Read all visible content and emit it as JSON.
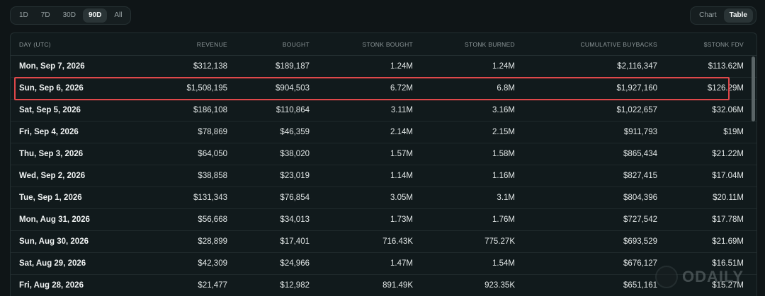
{
  "range_tabs": [
    {
      "label": "1D"
    },
    {
      "label": "7D"
    },
    {
      "label": "30D"
    },
    {
      "label": "90D"
    },
    {
      "label": "All"
    }
  ],
  "active_range": "90D",
  "view_tabs": [
    {
      "label": "Chart"
    },
    {
      "label": "Table"
    }
  ],
  "active_view": "Table",
  "table": {
    "headers": [
      "DAY (UTC)",
      "REVENUE",
      "BOUGHT",
      "STONK BOUGHT",
      "STONK BURNED",
      "CUMULATIVE BUYBACKS",
      "$STONK FDV"
    ],
    "rows": [
      [
        "Mon, Sep 7, 2026",
        "$312,138",
        "$189,187",
        "1.24M",
        "1.24M",
        "$2,116,347",
        "$113.62M"
      ],
      [
        "Sun, Sep 6, 2026",
        "$1,508,195",
        "$904,503",
        "6.72M",
        "6.8M",
        "$1,927,160",
        "$126.29M"
      ],
      [
        "Sat, Sep 5, 2026",
        "$186,108",
        "$110,864",
        "3.11M",
        "3.16M",
        "$1,022,657",
        "$32.06M"
      ],
      [
        "Fri, Sep 4, 2026",
        "$78,869",
        "$46,359",
        "2.14M",
        "2.15M",
        "$911,793",
        "$19M"
      ],
      [
        "Thu, Sep 3, 2026",
        "$64,050",
        "$38,020",
        "1.57M",
        "1.58M",
        "$865,434",
        "$21.22M"
      ],
      [
        "Wed, Sep 2, 2026",
        "$38,858",
        "$23,019",
        "1.14M",
        "1.16M",
        "$827,415",
        "$17.04M"
      ],
      [
        "Tue, Sep 1, 2026",
        "$131,343",
        "$76,854",
        "3.05M",
        "3.1M",
        "$804,396",
        "$20.11M"
      ],
      [
        "Mon, Aug 31, 2026",
        "$56,668",
        "$34,013",
        "1.73M",
        "1.76M",
        "$727,542",
        "$17.78M"
      ],
      [
        "Sun, Aug 30, 2026",
        "$28,899",
        "$17,401",
        "716.43K",
        "775.27K",
        "$693,529",
        "$21.69M"
      ],
      [
        "Sat, Aug 29, 2026",
        "$42,309",
        "$24,966",
        "1.47M",
        "1.54M",
        "$676,127",
        "$16.51M"
      ],
      [
        "Fri, Aug 28, 2026",
        "$21,477",
        "$12,982",
        "891.49K",
        "923.35K",
        "$651,161",
        "$15.27M"
      ]
    ]
  },
  "highlight_color": "#e0484a",
  "watermark": {
    "text": "ODAILY"
  }
}
